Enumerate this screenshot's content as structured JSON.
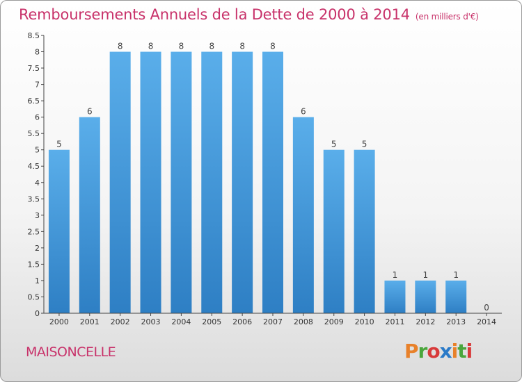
{
  "header": {
    "title": "Remboursements Annuels de la Dette de 2000 à 2014",
    "unit": "(en milliers d'€)"
  },
  "footer": {
    "commune": "MAISONCELLE",
    "logo": "Proxiti"
  },
  "colors": {
    "title": "#c8326a",
    "bar_top": "#5aaeea",
    "bar_bottom": "#2e7fc4",
    "logo": [
      "#e8812a",
      "#4aa63c",
      "#d83a3a",
      "#2a7ac8",
      "#e8812a",
      "#4aa63c",
      "#d83a3a"
    ]
  },
  "chart_data": {
    "type": "bar",
    "categories": [
      "2000",
      "2001",
      "2002",
      "2003",
      "2004",
      "2005",
      "2006",
      "2007",
      "2008",
      "2009",
      "2010",
      "2011",
      "2012",
      "2013",
      "2014"
    ],
    "values": [
      5,
      6,
      8,
      8,
      8,
      8,
      8,
      8,
      6,
      5,
      5,
      1,
      1,
      1,
      0
    ],
    "data_labels": [
      "5",
      "6",
      "8",
      "8",
      "8",
      "8",
      "8",
      "8",
      "6",
      "5",
      "5",
      "1",
      "1",
      "1",
      "0"
    ],
    "yticks": [
      "0",
      "0.5",
      "1",
      "1.5",
      "2",
      "2.5",
      "3",
      "3.5",
      "4",
      "4.5",
      "5",
      "5.5",
      "6",
      "6.5",
      "7",
      "7.5",
      "8",
      "8.5"
    ],
    "ylim": [
      0,
      8.5
    ],
    "grid": false
  }
}
